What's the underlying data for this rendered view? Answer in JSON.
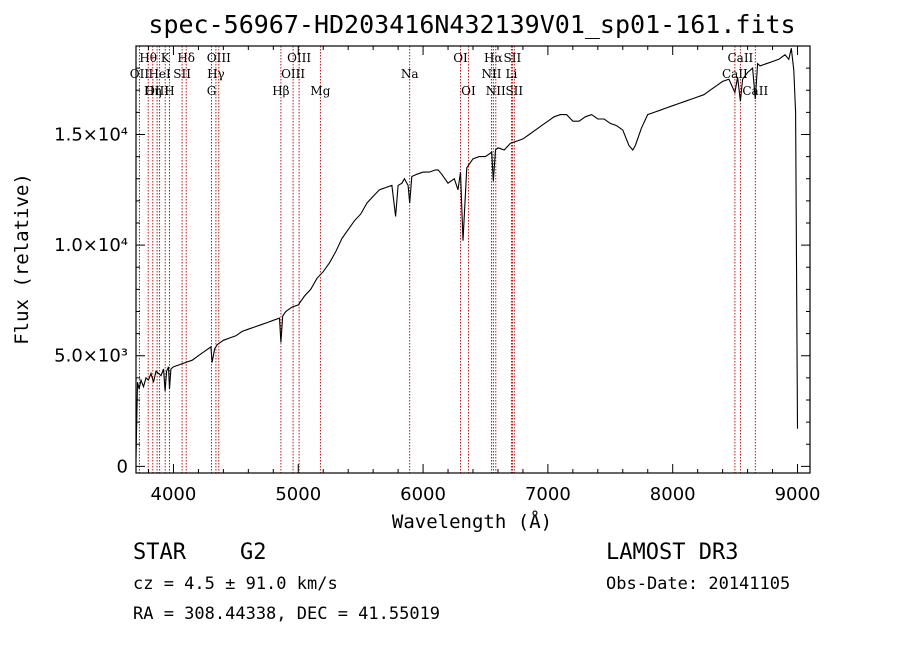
{
  "chart_data": {
    "type": "line",
    "title": "spec-56967-HD203416N432139V01_sp01-161.fits",
    "xlabel": "Wavelength (Å)",
    "ylabel": "Flux (relative)",
    "xlim": [
      3700,
      9100
    ],
    "ylim": [
      -300,
      19000
    ],
    "x_ticks": [
      4000,
      5000,
      6000,
      7000,
      8000,
      9000
    ],
    "x_tick_labels": [
      "4000",
      "5000",
      "6000",
      "7000",
      "8000",
      "9000"
    ],
    "y_ticks": [
      0,
      5000,
      10000,
      15000
    ],
    "y_tick_labels": [
      "0",
      "5.0×10³",
      "1.0×10⁴",
      "1.5×10⁴"
    ],
    "series": [
      {
        "name": "spectrum",
        "x": [
          3700,
          3712,
          3725,
          3740,
          3760,
          3780,
          3800,
          3820,
          3840,
          3860,
          3880,
          3900,
          3920,
          3933,
          3945,
          3960,
          3968,
          3980,
          4000,
          4050,
          4100,
          4150,
          4200,
          4250,
          4300,
          4310,
          4330,
          4350,
          4400,
          4450,
          4500,
          4550,
          4600,
          4650,
          4700,
          4750,
          4800,
          4850,
          4861,
          4875,
          4900,
          4950,
          5000,
          5050,
          5100,
          5150,
          5200,
          5250,
          5300,
          5350,
          5400,
          5450,
          5500,
          5550,
          5600,
          5650,
          5700,
          5750,
          5780,
          5800,
          5830,
          5850,
          5880,
          5893,
          5910,
          5950,
          6000,
          6050,
          6100,
          6120,
          6150,
          6200,
          6250,
          6280,
          6300,
          6320,
          6350,
          6400,
          6450,
          6500,
          6550,
          6563,
          6580,
          6600,
          6650,
          6700,
          6750,
          6800,
          6850,
          6900,
          6950,
          7000,
          7050,
          7100,
          7150,
          7200,
          7250,
          7300,
          7350,
          7400,
          7450,
          7500,
          7550,
          7600,
          7650,
          7680,
          7700,
          7750,
          7800,
          7850,
          7900,
          7950,
          8000,
          8050,
          8100,
          8150,
          8200,
          8250,
          8300,
          8350,
          8400,
          8450,
          8498,
          8520,
          8542,
          8560,
          8600,
          8640,
          8662,
          8680,
          8700,
          8750,
          8800,
          8850,
          8900,
          8930,
          8950,
          8970,
          8985,
          9000
        ],
        "y": [
          400,
          3800,
          3500,
          3900,
          3600,
          4000,
          3900,
          4200,
          3800,
          4300,
          4200,
          4100,
          4400,
          3400,
          4300,
          4500,
          3500,
          4400,
          4500,
          4600,
          4700,
          4800,
          5000,
          5200,
          5400,
          4700,
          5300,
          5500,
          5700,
          5800,
          5900,
          6100,
          6200,
          6300,
          6400,
          6500,
          6600,
          6700,
          5600,
          6800,
          7000,
          7200,
          7300,
          7700,
          8000,
          8500,
          8800,
          9200,
          9700,
          10300,
          10700,
          11100,
          11400,
          11900,
          12200,
          12500,
          12600,
          12700,
          11300,
          12700,
          12800,
          13000,
          12700,
          11900,
          13100,
          13200,
          13300,
          13300,
          13400,
          13400,
          13200,
          12800,
          13000,
          12500,
          13300,
          10200,
          13500,
          13900,
          14000,
          14000,
          14200,
          12900,
          14300,
          14400,
          14300,
          14600,
          14700,
          14800,
          15000,
          15200,
          15400,
          15600,
          15800,
          15900,
          15900,
          15600,
          15600,
          15800,
          15900,
          15700,
          15700,
          15500,
          15400,
          15200,
          14500,
          14300,
          14500,
          15300,
          15900,
          16000,
          16100,
          16200,
          16300,
          16400,
          16500,
          16600,
          16700,
          16800,
          17000,
          17200,
          17400,
          17500,
          16900,
          17600,
          16500,
          17500,
          17800,
          18000,
          16600,
          18200,
          18100,
          18200,
          18300,
          18400,
          18600,
          18400,
          18900,
          17900,
          16000,
          1700
        ]
      }
    ],
    "emission_lines": [
      {
        "name": "Hθ",
        "wave": 3798,
        "row": 1
      },
      {
        "name": "OII",
        "wave": 3727,
        "row": 2
      },
      {
        "name": "OIII",
        "wave": 3869,
        "row": 3
      },
      {
        "name": "K",
        "wave": 3934,
        "row": 1
      },
      {
        "name": "HeI",
        "wave": 3889,
        "row": 2
      },
      {
        "name": "Hη",
        "wave": 3835,
        "row": 3
      },
      {
        "name": "Hδ",
        "wave": 4102,
        "row": 1
      },
      {
        "name": "SII",
        "wave": 4069,
        "row": 2
      },
      {
        "name": "H",
        "wave": 3968,
        "row": 3
      },
      {
        "name": "OIII",
        "wave": 4363,
        "row": 1
      },
      {
        "name": "Hγ",
        "wave": 4340,
        "row": 2
      },
      {
        "name": "G",
        "wave": 4305,
        "row": 3
      },
      {
        "name": "OIII",
        "wave": 5007,
        "row": 1
      },
      {
        "name": "OIII",
        "wave": 4959,
        "row": 2
      },
      {
        "name": "Hβ",
        "wave": 4861,
        "row": 3
      },
      {
        "name": "Mg",
        "wave": 5177,
        "row": 3
      },
      {
        "name": "Na",
        "wave": 5893,
        "row": 2
      },
      {
        "name": "OI",
        "wave": 6300,
        "row": 1
      },
      {
        "name": "OI",
        "wave": 6363,
        "row": 3
      },
      {
        "name": "Hα",
        "wave": 6563,
        "row": 1
      },
      {
        "name": "SII",
        "wave": 6716,
        "row": 1
      },
      {
        "name": "NII",
        "wave": 6548,
        "row": 2
      },
      {
        "name": "Li",
        "wave": 6708,
        "row": 2
      },
      {
        "name": "NII",
        "wave": 6583,
        "row": 3
      },
      {
        "name": "SII",
        "wave": 6731,
        "row": 3
      },
      {
        "name": "CaII",
        "wave": 8542,
        "row": 1
      },
      {
        "name": "CaII",
        "wave": 8498,
        "row": 2
      },
      {
        "name": "CaII",
        "wave": 8662,
        "row": 3
      }
    ]
  },
  "footer": {
    "object_class": "STAR",
    "subclass": "G2",
    "survey": "LAMOST DR3",
    "redshift": "cz = 4.5 ± 91.0 km/s",
    "obs_date": "Obs-Date: 20141105",
    "coords": "RA = 308.44338, DEC =  41.55019"
  },
  "colors": {
    "spectrum": "#000000",
    "line_marker": "#b00000",
    "axis": "#000000"
  }
}
